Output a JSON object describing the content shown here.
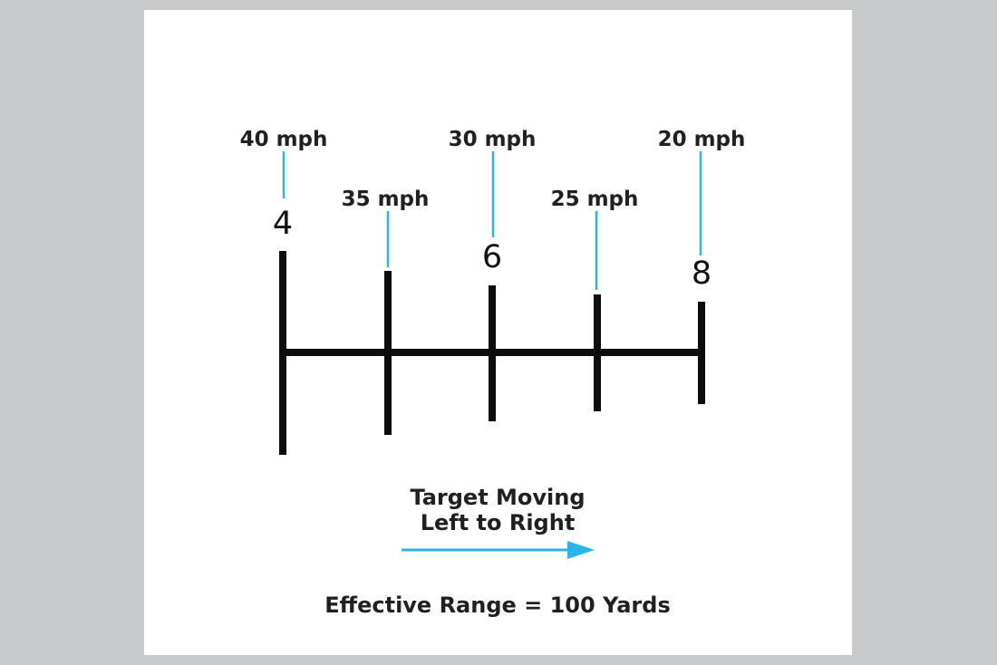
{
  "colors": {
    "background": "#c8c9cb",
    "card": "#ffffff",
    "reticle": "#0d0d0d",
    "leader": "#29b6e6",
    "arrow": "#29b6e6",
    "text": "#231f20"
  },
  "marks": [
    {
      "number": "4",
      "speed": "40 mph"
    },
    {
      "number": "",
      "speed": "35 mph"
    },
    {
      "number": "6",
      "speed": "30 mph"
    },
    {
      "number": "",
      "speed": "25 mph"
    },
    {
      "number": "8",
      "speed": "20 mph"
    }
  ],
  "direction": {
    "line1": "Target Moving",
    "line2": "Left to Right",
    "arrow_icon": "right-arrow-icon"
  },
  "footer": "Effective Range = 100 Yards"
}
